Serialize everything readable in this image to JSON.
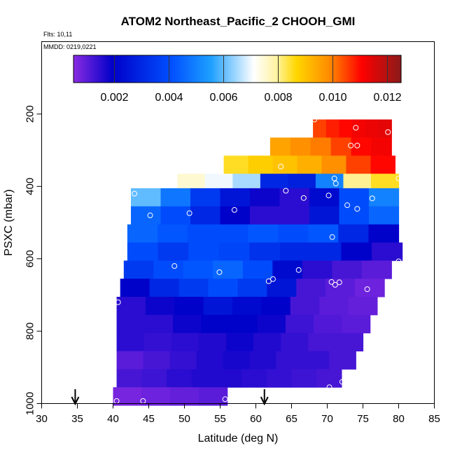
{
  "chart_data": {
    "type": "heatmap",
    "title": "ATOM2 Northeast_Pacific_2 CHOOH_GMI",
    "flights_label": "Flts: 10,11",
    "dates_label": "MMDD: 0219,0221",
    "xlabel": "Latitude (deg N)",
    "ylabel": "PSXC (mbar)",
    "xlim": [
      30,
      85
    ],
    "ylim": [
      1000,
      0
    ],
    "xticks": [
      "30",
      "35",
      "40",
      "45",
      "50",
      "55",
      "60",
      "65",
      "70",
      "75",
      "80",
      "85"
    ],
    "yticks": [
      "200",
      "400",
      "600",
      "800",
      "1000"
    ],
    "colorbar": {
      "range": [
        0.0005,
        0.0125
      ],
      "ticks": [
        "0.002",
        "0.004",
        "0.006",
        "0.008",
        "0.010",
        "0.012"
      ],
      "colors": [
        "#8a2be2",
        "#0000c8",
        "#1e90ff",
        "#ffffff",
        "#ffd700",
        "#ff0000",
        "#8b1a1a"
      ],
      "position": "top, inside plot"
    },
    "rows": [
      {
        "pressure": 240,
        "lat_start": 68,
        "lat_end": 79,
        "values": [
          0.0105,
          0.0108,
          0.011,
          0.0112,
          0.0113,
          0.0114
        ]
      },
      {
        "pressure": 290,
        "lat_start": 62,
        "lat_end": 79,
        "values": [
          0.0095,
          0.0098,
          0.01,
          0.0105,
          0.011,
          0.0112
        ]
      },
      {
        "pressure": 340,
        "lat_start": 55.5,
        "lat_end": 79.5,
        "values": [
          0.0085,
          0.0088,
          0.009,
          0.0093,
          0.0098,
          0.0105,
          0.011
        ]
      },
      {
        "pressure": 390,
        "lat_start": 49,
        "lat_end": 80,
        "values": [
          0.0075,
          0.007,
          0.0065,
          0.003,
          0.0028,
          0.005,
          0.008,
          0.0085
        ]
      },
      {
        "pressure": 430,
        "lat_start": 42.5,
        "lat_end": 80,
        "values": [
          0.006,
          0.0048,
          0.0035,
          0.0025,
          0.0018,
          0.0015,
          0.0022,
          0.004,
          0.005
        ]
      },
      {
        "pressure": 480,
        "lat_start": 42.5,
        "lat_end": 80,
        "values": [
          0.0045,
          0.004,
          0.003,
          0.002,
          0.0015,
          0.0015,
          0.0025,
          0.004,
          0.0045
        ]
      },
      {
        "pressure": 530,
        "lat_start": 42,
        "lat_end": 80,
        "values": [
          0.0045,
          0.0042,
          0.004,
          0.004,
          0.0042,
          0.004,
          0.0042,
          0.003,
          0.002
        ]
      },
      {
        "pressure": 580,
        "lat_start": 42,
        "lat_end": 80.5,
        "values": [
          0.004,
          0.0035,
          0.004,
          0.0038,
          0.0033,
          0.003,
          0.003,
          0.002,
          0.0015
        ]
      },
      {
        "pressure": 630,
        "lat_start": 41.5,
        "lat_end": 79,
        "values": [
          0.0035,
          0.004,
          0.0042,
          0.0045,
          0.004,
          0.0022,
          0.0015,
          0.0012,
          0.001
        ]
      },
      {
        "pressure": 680,
        "lat_start": 41,
        "lat_end": 78,
        "values": [
          0.002,
          0.003,
          0.0035,
          0.004,
          0.0035,
          0.0025,
          0.0012,
          0.001,
          0.0008
        ]
      },
      {
        "pressure": 730,
        "lat_start": 40.5,
        "lat_end": 77,
        "values": [
          0.0015,
          0.0018,
          0.002,
          0.0025,
          0.0022,
          0.002,
          0.0012,
          0.001,
          0.0009
        ]
      },
      {
        "pressure": 780,
        "lat_start": 40.5,
        "lat_end": 76,
        "values": [
          0.0015,
          0.0015,
          0.0018,
          0.002,
          0.002,
          0.0018,
          0.0013,
          0.0011,
          0.001
        ]
      },
      {
        "pressure": 830,
        "lat_start": 40.5,
        "lat_end": 75,
        "values": [
          0.0015,
          0.0014,
          0.0015,
          0.0016,
          0.0018,
          0.0016,
          0.0014,
          0.0012,
          0.0012
        ]
      },
      {
        "pressure": 880,
        "lat_start": 40.5,
        "lat_end": 74,
        "values": [
          0.001,
          0.0012,
          0.0014,
          0.0016,
          0.0017,
          0.0016,
          0.0014,
          0.0014,
          0.0012
        ]
      },
      {
        "pressure": 930,
        "lat_start": 40.5,
        "lat_end": 72,
        "values": [
          0.0012,
          0.0013,
          0.0015,
          0.0016,
          0.0016,
          0.0015,
          0.0014,
          0.0013,
          0.0012
        ]
      },
      {
        "pressure": 980,
        "lat_start": 40,
        "lat_end": 56,
        "values": [
          0.0007,
          0.0008,
          0.0009,
          0.001
        ]
      }
    ],
    "points": [
      {
        "lat": 68.2,
        "p": 215
      },
      {
        "lat": 74.0,
        "p": 238
      },
      {
        "lat": 78.5,
        "p": 250
      },
      {
        "lat": 73.3,
        "p": 287
      },
      {
        "lat": 74.2,
        "p": 287
      },
      {
        "lat": 63.5,
        "p": 345
      },
      {
        "lat": 71.0,
        "p": 378
      },
      {
        "lat": 71.2,
        "p": 392
      },
      {
        "lat": 80.0,
        "p": 378
      },
      {
        "lat": 43.0,
        "p": 420
      },
      {
        "lat": 64.2,
        "p": 412
      },
      {
        "lat": 66.7,
        "p": 432
      },
      {
        "lat": 70.2,
        "p": 425
      },
      {
        "lat": 76.3,
        "p": 433
      },
      {
        "lat": 72.8,
        "p": 452
      },
      {
        "lat": 74.2,
        "p": 462
      },
      {
        "lat": 45.2,
        "p": 480
      },
      {
        "lat": 50.7,
        "p": 474
      },
      {
        "lat": 57.0,
        "p": 465
      },
      {
        "lat": 70.7,
        "p": 540
      },
      {
        "lat": 48.6,
        "p": 620
      },
      {
        "lat": 54.9,
        "p": 637
      },
      {
        "lat": 66.0,
        "p": 631
      },
      {
        "lat": 80.0,
        "p": 607
      },
      {
        "lat": 61.8,
        "p": 662
      },
      {
        "lat": 62.4,
        "p": 656
      },
      {
        "lat": 70.6,
        "p": 664
      },
      {
        "lat": 71.1,
        "p": 672
      },
      {
        "lat": 71.7,
        "p": 665
      },
      {
        "lat": 75.6,
        "p": 684
      },
      {
        "lat": 40.7,
        "p": 720
      },
      {
        "lat": 72.1,
        "p": 940
      },
      {
        "lat": 70.3,
        "p": 955
      },
      {
        "lat": 40.5,
        "p": 993
      },
      {
        "lat": 44.2,
        "p": 993
      },
      {
        "lat": 55.7,
        "p": 988
      }
    ],
    "arrows": [
      {
        "lat": 34.7,
        "label": ""
      },
      {
        "lat": 61.2,
        "label": ""
      }
    ]
  }
}
